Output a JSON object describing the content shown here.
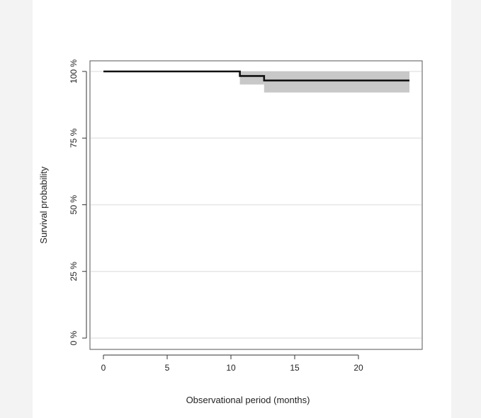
{
  "chart_data": {
    "type": "line",
    "subtype": "kaplan-meier-step",
    "title": "",
    "xlabel": "Observational period (months)",
    "ylabel": "Survival probability",
    "xlim": [
      0,
      24
    ],
    "ylim": [
      0,
      100
    ],
    "x_ticks": [
      0,
      5,
      10,
      15,
      20
    ],
    "x_tick_labels": [
      "0",
      "5",
      "10",
      "15",
      "20"
    ],
    "y_ticks": [
      0,
      25,
      50,
      75,
      100
    ],
    "y_tick_labels": [
      "0 %",
      "25 %",
      "50 %",
      "75 %",
      "100 %"
    ],
    "grid": "horizontal",
    "legend": "none",
    "series": [
      {
        "x": [
          0,
          10.7,
          12.6,
          24
        ],
        "y": [
          100,
          98.3,
          96.6,
          96.6
        ],
        "ci_lower": [
          100,
          95.1,
          92.1,
          92.1
        ],
        "ci_upper": [
          100,
          100,
          100,
          100
        ],
        "color": "#111111",
        "ci_color": "#c8c8c8"
      }
    ]
  }
}
